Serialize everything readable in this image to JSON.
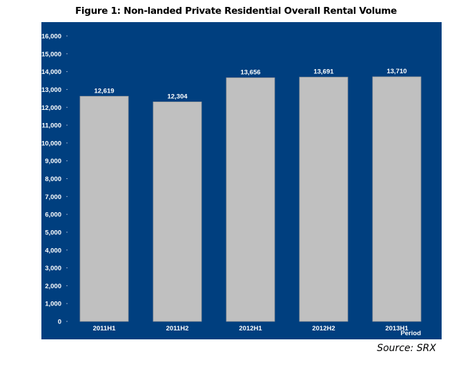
{
  "chart_data": {
    "type": "bar",
    "title": "Figure 1: Non-landed Private Residential Overall Rental Volume",
    "categories": [
      "2011H1",
      "2011H2",
      "2012H1",
      "2012H2",
      "2013H1"
    ],
    "values": [
      12619,
      12304,
      13656,
      13691,
      13710
    ],
    "data_labels": [
      "12,619",
      "12,304",
      "13,656",
      "13,691",
      "13,710"
    ],
    "xlabel": "Period",
    "ylabel": "",
    "ylim": [
      0,
      16000
    ],
    "yticks": [
      "0",
      "1,000",
      "2,000",
      "3,000",
      "4,000",
      "5,000",
      "6,000",
      "7,000",
      "8,000",
      "9,000",
      "10,000",
      "11,000",
      "12,000",
      "13,000",
      "14,000",
      "15,000",
      "16,000"
    ],
    "grid": false,
    "legend": "none",
    "colors": {
      "background": "#003f7f",
      "bar": "#c0c0c0",
      "text": "#ffffff"
    }
  },
  "source": "Source: SRX"
}
